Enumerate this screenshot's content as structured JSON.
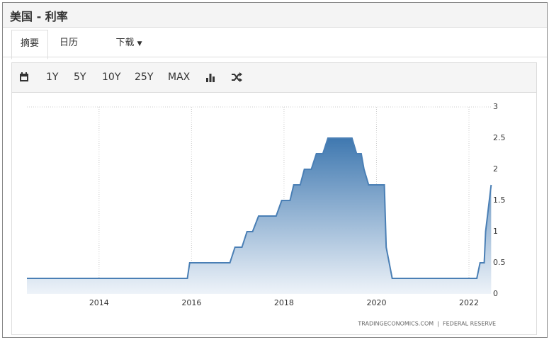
{
  "header": {
    "title": "美国 - 利率"
  },
  "tabs": [
    "摘要",
    "日历",
    "下载"
  ],
  "toolbar": [
    "1Y",
    "5Y",
    "10Y",
    "25Y",
    "MAX"
  ],
  "source": "TRADINGECONOMICS.COM  |  FEDERAL RESERVE",
  "chart_data": {
    "type": "area",
    "x": [
      2012.44,
      2015.91,
      2015.96,
      2016.83,
      2016.94,
      2017.09,
      2017.2,
      2017.32,
      2017.45,
      2017.83,
      2017.95,
      2018.13,
      2018.21,
      2018.35,
      2018.44,
      2018.59,
      2018.7,
      2018.84,
      2018.95,
      2019.47,
      2019.57,
      2019.67,
      2019.73,
      2019.83,
      2020.17,
      2020.21,
      2020.34,
      2022.17,
      2022.24,
      2022.33,
      2022.36,
      2022.48
    ],
    "series": [
      {
        "color": "#4a7fb5",
        "values": [
          0.25,
          0.25,
          0.5,
          0.5,
          0.75,
          0.75,
          1.0,
          1.0,
          1.25,
          1.25,
          1.5,
          1.5,
          1.75,
          1.75,
          2.0,
          2.0,
          2.25,
          2.25,
          2.5,
          2.5,
          2.25,
          2.25,
          2.0,
          1.75,
          1.75,
          0.75,
          0.25,
          0.25,
          0.5,
          0.5,
          1.0,
          1.75
        ]
      }
    ],
    "xlim": [
      2012.44,
      2022.49
    ],
    "xticks": [
      2014,
      2016,
      2018,
      2020,
      2022
    ],
    "ylim": [
      0,
      3
    ],
    "yticks": [
      0,
      0.5,
      1,
      1.5,
      2,
      2.5,
      3
    ],
    "grid": true
  }
}
